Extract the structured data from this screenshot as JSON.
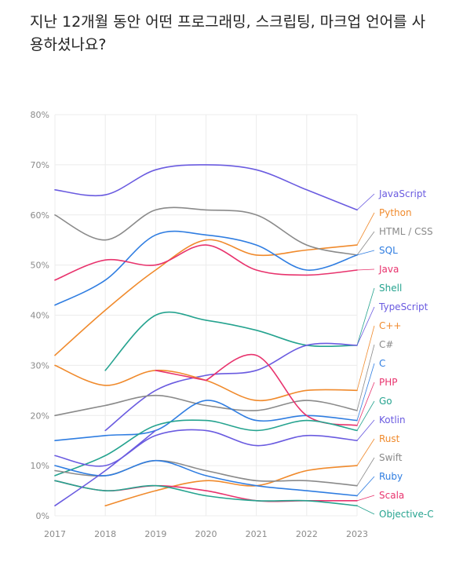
{
  "title": "지난 12개월 동안 어떤 프로그래밍, 스크립팅, 마크업 언어를 사용하셨나요?",
  "chart_data": {
    "type": "line",
    "x": [
      "2017",
      "2018",
      "2019",
      "2020",
      "2021",
      "2022",
      "2023"
    ],
    "ylim": [
      0,
      80
    ],
    "yticks": [
      "0%",
      "10%",
      "20%",
      "30%",
      "40%",
      "50%",
      "60%",
      "70%",
      "80%"
    ],
    "grid": true,
    "legend": "right end labels",
    "series": [
      {
        "name": "JavaScript",
        "color": "#6a5be0",
        "values": [
          65,
          64,
          69,
          70,
          69,
          65,
          61
        ]
      },
      {
        "name": "Python",
        "color": "#f08a2c",
        "values": [
          32,
          41,
          49,
          55,
          52,
          53,
          54
        ]
      },
      {
        "name": "HTML / CSS",
        "color": "#8a8a8a",
        "values": [
          60,
          55,
          61,
          61,
          60,
          54,
          52
        ]
      },
      {
        "name": "SQL",
        "color": "#2f7de1",
        "values": [
          42,
          47,
          56,
          56,
          54,
          49,
          52
        ]
      },
      {
        "name": "Java",
        "color": "#e8336d",
        "values": [
          47,
          51,
          50,
          54,
          49,
          48,
          49
        ]
      },
      {
        "name": "Shell",
        "color": "#25a38f",
        "values": [
          null,
          29,
          40,
          39,
          37,
          34,
          34
        ]
      },
      {
        "name": "TypeScript",
        "color": "#6a5be0",
        "values": [
          null,
          17,
          25,
          28,
          29,
          34,
          34
        ]
      },
      {
        "name": "C++",
        "color": "#f08a2c",
        "values": [
          30,
          26,
          29,
          27,
          23,
          25,
          25
        ]
      },
      {
        "name": "C#",
        "color": "#8a8a8a",
        "values": [
          20,
          22,
          24,
          22,
          21,
          23,
          21
        ]
      },
      {
        "name": "C",
        "color": "#2f7de1",
        "values": [
          15,
          16,
          17,
          23,
          19,
          20,
          19
        ]
      },
      {
        "name": "PHP",
        "color": "#e8336d",
        "values": [
          null,
          null,
          null,
          27,
          32,
          20,
          18
        ]
      },
      {
        "name": "Go",
        "color": "#25a38f",
        "values": [
          8,
          12,
          18,
          19,
          17,
          19,
          17
        ]
      },
      {
        "name": "Kotlin",
        "color": "#6a5be0",
        "values": [
          12,
          10,
          16,
          17,
          14,
          16,
          15
        ]
      },
      {
        "name": "Rust",
        "color": "#f08a2c",
        "values": [
          null,
          2,
          5,
          7,
          6,
          9,
          10
        ]
      },
      {
        "name": "Swift",
        "color": "#8a8a8a",
        "values": [
          9,
          8,
          11,
          9,
          7,
          7,
          6
        ]
      },
      {
        "name": "Ruby",
        "color": "#2f7de1",
        "values": [
          10,
          8,
          11,
          8,
          6,
          5,
          4
        ]
      },
      {
        "name": "Scala",
        "color": "#e8336d",
        "values": [
          7,
          5,
          6,
          5,
          3,
          3,
          3
        ]
      },
      {
        "name": "Objective-C",
        "color": "#25a38f",
        "values": [
          7,
          5,
          6,
          4,
          3,
          3,
          2
        ]
      },
      {
        "name": "",
        "color": "#6a5be0",
        "values": [
          2,
          9,
          17,
          null,
          null,
          null,
          null
        ]
      },
      {
        "name": "",
        "color": "#e8336d",
        "values": [
          null,
          null,
          29,
          27,
          null,
          null,
          null
        ]
      }
    ]
  }
}
